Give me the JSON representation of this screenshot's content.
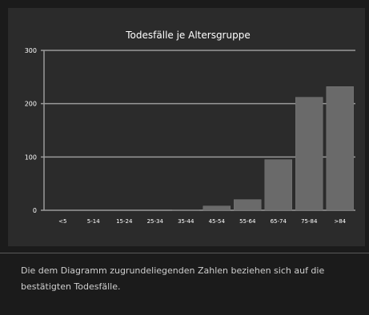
{
  "chart_data": {
    "type": "bar",
    "title": "Todesfälle je Altersgruppe",
    "categories": [
      "<5",
      "5-14",
      "15-24",
      "25-34",
      "35-44",
      "45-54",
      "55-64",
      "65-74",
      "75-84",
      ">84"
    ],
    "values": [
      0,
      0,
      0,
      0,
      1,
      8,
      20,
      95,
      212,
      232
    ],
    "ylim": [
      0,
      300
    ],
    "yticks": [
      0,
      100,
      200,
      300
    ],
    "grid": true,
    "bar_color": "#6a6a6a",
    "grid_color": "#9a9a9a"
  },
  "footnote": "Die dem Diagramm zugrundeliegenden Zahlen beziehen sich auf die bestätigten Todesfälle."
}
